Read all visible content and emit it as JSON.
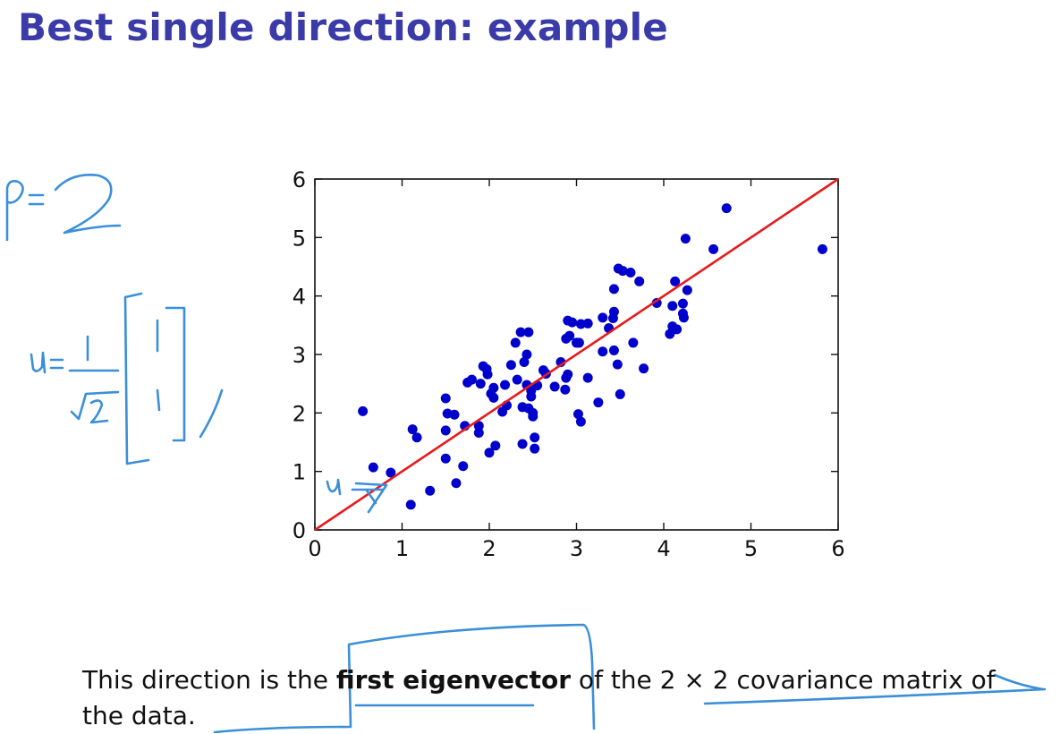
{
  "slide": {
    "title": "Best single direction: example"
  },
  "caption": {
    "part1": "This direction is the ",
    "bold": "first eigenvector",
    "part2": " of the 2 × 2 covariance matrix of",
    "line2": "the data."
  },
  "annotations": {
    "color": "#3a8fd8",
    "labels": [
      "p = 2",
      "u = 1/√2 [1 1]",
      "u"
    ]
  },
  "colors": {
    "title": "#3a3aa8",
    "points": "#0000cc",
    "line": "#e8191c"
  },
  "chart_data": {
    "type": "scatter",
    "title": "",
    "xlabel": "",
    "ylabel": "",
    "xlim": [
      0,
      6
    ],
    "ylim": [
      0,
      6
    ],
    "xticks": [
      "0",
      "1",
      "2",
      "3",
      "4",
      "5",
      "6"
    ],
    "yticks": [
      "0",
      "1",
      "2",
      "3",
      "4",
      "5",
      "6"
    ],
    "grid": false,
    "points": [
      [
        0.55,
        2.03
      ],
      [
        0.67,
        1.07
      ],
      [
        0.87,
        0.98
      ],
      [
        1.12,
        1.72
      ],
      [
        1.17,
        1.58
      ],
      [
        1.1,
        0.43
      ],
      [
        1.32,
        0.67
      ],
      [
        1.5,
        2.25
      ],
      [
        1.52,
        1.99
      ],
      [
        1.5,
        1.7
      ],
      [
        1.5,
        1.22
      ],
      [
        1.6,
        1.97
      ],
      [
        1.62,
        0.8
      ],
      [
        1.7,
        1.09
      ],
      [
        1.72,
        1.78
      ],
      [
        1.75,
        2.52
      ],
      [
        1.8,
        2.57
      ],
      [
        1.88,
        1.78
      ],
      [
        1.88,
        1.66
      ],
      [
        1.9,
        2.5
      ],
      [
        1.93,
        2.8
      ],
      [
        1.98,
        2.66
      ],
      [
        2.0,
        1.32
      ],
      [
        1.97,
        2.75
      ],
      [
        2.02,
        2.33
      ],
      [
        2.05,
        2.43
      ],
      [
        2.05,
        2.26
      ],
      [
        2.07,
        1.44
      ],
      [
        2.15,
        2.02
      ],
      [
        2.18,
        2.48
      ],
      [
        2.2,
        2.13
      ],
      [
        2.25,
        2.82
      ],
      [
        2.3,
        3.2
      ],
      [
        2.32,
        2.57
      ],
      [
        2.36,
        3.38
      ],
      [
        2.38,
        2.1
      ],
      [
        2.38,
        1.47
      ],
      [
        2.4,
        2.87
      ],
      [
        2.43,
        3.0
      ],
      [
        2.43,
        2.48
      ],
      [
        2.45,
        2.08
      ],
      [
        2.45,
        3.38
      ],
      [
        2.48,
        2.38
      ],
      [
        2.48,
        2.28
      ],
      [
        2.5,
        2.0
      ],
      [
        2.5,
        1.94
      ],
      [
        2.52,
        1.58
      ],
      [
        2.52,
        1.39
      ],
      [
        2.55,
        2.47
      ],
      [
        2.62,
        2.73
      ],
      [
        2.65,
        2.67
      ],
      [
        2.75,
        2.45
      ],
      [
        2.82,
        2.87
      ],
      [
        2.87,
        2.4
      ],
      [
        2.88,
        2.6
      ],
      [
        2.88,
        3.27
      ],
      [
        2.9,
        2.66
      ],
      [
        2.9,
        3.58
      ],
      [
        2.92,
        3.32
      ],
      [
        2.95,
        3.55
      ],
      [
        3.0,
        3.2
      ],
      [
        3.02,
        1.98
      ],
      [
        3.03,
        3.2
      ],
      [
        3.05,
        3.52
      ],
      [
        3.05,
        1.85
      ],
      [
        3.13,
        3.53
      ],
      [
        3.13,
        2.6
      ],
      [
        3.25,
        2.18
      ],
      [
        3.3,
        3.63
      ],
      [
        3.3,
        3.05
      ],
      [
        3.37,
        3.45
      ],
      [
        3.42,
        3.62
      ],
      [
        3.43,
        3.07
      ],
      [
        3.43,
        3.73
      ],
      [
        3.43,
        4.12
      ],
      [
        3.47,
        2.83
      ],
      [
        3.48,
        4.47
      ],
      [
        3.5,
        2.32
      ],
      [
        3.53,
        4.43
      ],
      [
        3.62,
        4.4
      ],
      [
        3.65,
        3.2
      ],
      [
        3.72,
        4.25
      ],
      [
        3.77,
        2.76
      ],
      [
        3.92,
        3.88
      ],
      [
        4.07,
        3.35
      ],
      [
        4.1,
        3.48
      ],
      [
        4.1,
        3.83
      ],
      [
        4.13,
        4.25
      ],
      [
        4.15,
        3.43
      ],
      [
        4.22,
        3.7
      ],
      [
        4.22,
        3.87
      ],
      [
        4.23,
        3.63
      ],
      [
        4.25,
        4.98
      ],
      [
        4.27,
        4.1
      ],
      [
        4.57,
        4.8
      ],
      [
        4.72,
        5.5
      ],
      [
        5.82,
        4.8
      ]
    ],
    "line": {
      "x": [
        0,
        6
      ],
      "y": [
        0,
        6
      ]
    }
  }
}
